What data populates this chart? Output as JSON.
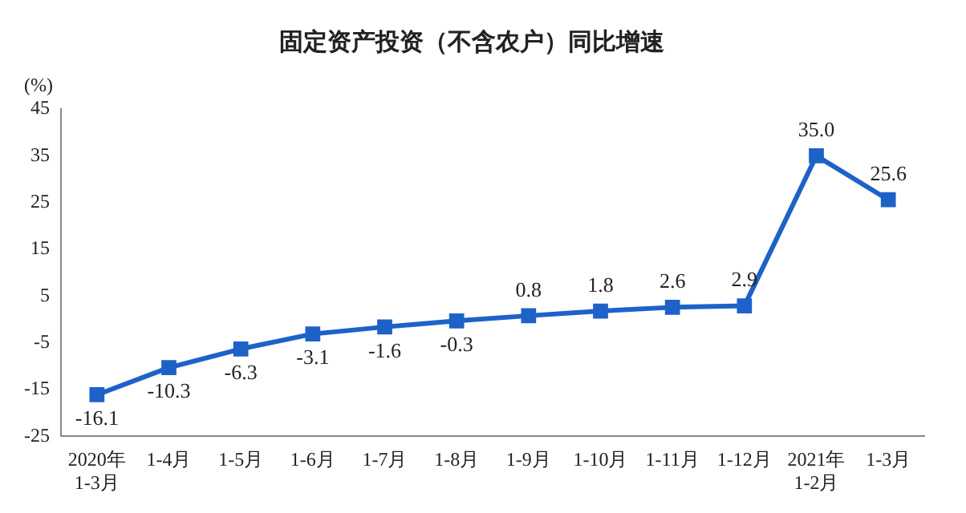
{
  "chart_data": {
    "type": "line",
    "title": "固定资产投资（不含农户）同比增速",
    "ylabel": "(%)",
    "categories": [
      "2020年\n1-3月",
      "1-4月",
      "1-5月",
      "1-6月",
      "1-7月",
      "1-8月",
      "1-9月",
      "1-10月",
      "1-11月",
      "1-12月",
      "2021年\n1-2月",
      "1-3月"
    ],
    "series": [
      {
        "color": "#1e62c8",
        "values": [
          -16.1,
          -10.3,
          -6.3,
          -3.1,
          -1.6,
          -0.3,
          0.8,
          1.8,
          2.6,
          2.9,
          35.0,
          25.6
        ],
        "value_labels": [
          "-16.1",
          "-10.3",
          "-6.3",
          "-3.1",
          "-1.6",
          "-0.3",
          "0.8",
          "1.8",
          "2.6",
          "2.9",
          "35.0",
          "25.6"
        ]
      }
    ],
    "ylim": [
      -25,
      45
    ],
    "yticks": [
      -25,
      -15,
      -5,
      5,
      15,
      25,
      35,
      45
    ],
    "grid": false,
    "legend": false,
    "marker": "square",
    "line_style": "solid"
  }
}
